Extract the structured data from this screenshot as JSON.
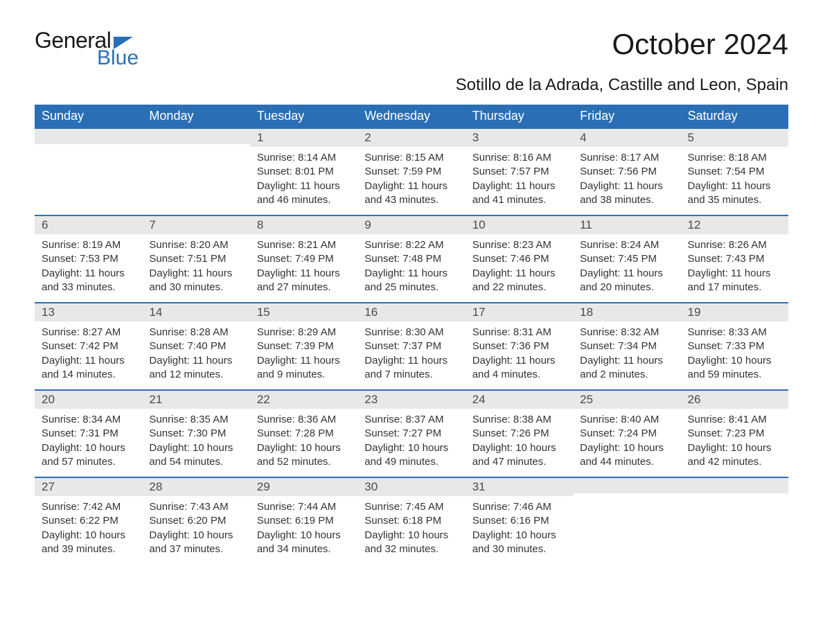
{
  "logo": {
    "top": "General",
    "bottom": "Blue"
  },
  "title": "October 2024",
  "subtitle": "Sotillo de la Adrada, Castille and Leon, Spain",
  "colors": {
    "header_bg": "#2a6fb5",
    "header_text": "#ffffff",
    "daynum_bg": "#e8e8e8",
    "daynum_border": "#2a6fb5",
    "body_text": "#333333",
    "page_bg": "#ffffff"
  },
  "typography": {
    "title_fontsize": 42,
    "subtitle_fontsize": 24,
    "header_fontsize": 18,
    "daynum_fontsize": 17,
    "body_fontsize": 15
  },
  "weekdays": [
    "Sunday",
    "Monday",
    "Tuesday",
    "Wednesday",
    "Thursday",
    "Friday",
    "Saturday"
  ],
  "rows": [
    [
      {
        "blank": true
      },
      {
        "blank": true
      },
      {
        "n": "1",
        "sunrise": "8:14 AM",
        "sunset": "8:01 PM",
        "daylight": "11 hours and 46 minutes."
      },
      {
        "n": "2",
        "sunrise": "8:15 AM",
        "sunset": "7:59 PM",
        "daylight": "11 hours and 43 minutes."
      },
      {
        "n": "3",
        "sunrise": "8:16 AM",
        "sunset": "7:57 PM",
        "daylight": "11 hours and 41 minutes."
      },
      {
        "n": "4",
        "sunrise": "8:17 AM",
        "sunset": "7:56 PM",
        "daylight": "11 hours and 38 minutes."
      },
      {
        "n": "5",
        "sunrise": "8:18 AM",
        "sunset": "7:54 PM",
        "daylight": "11 hours and 35 minutes."
      }
    ],
    [
      {
        "n": "6",
        "sunrise": "8:19 AM",
        "sunset": "7:53 PM",
        "daylight": "11 hours and 33 minutes."
      },
      {
        "n": "7",
        "sunrise": "8:20 AM",
        "sunset": "7:51 PM",
        "daylight": "11 hours and 30 minutes."
      },
      {
        "n": "8",
        "sunrise": "8:21 AM",
        "sunset": "7:49 PM",
        "daylight": "11 hours and 27 minutes."
      },
      {
        "n": "9",
        "sunrise": "8:22 AM",
        "sunset": "7:48 PM",
        "daylight": "11 hours and 25 minutes."
      },
      {
        "n": "10",
        "sunrise": "8:23 AM",
        "sunset": "7:46 PM",
        "daylight": "11 hours and 22 minutes."
      },
      {
        "n": "11",
        "sunrise": "8:24 AM",
        "sunset": "7:45 PM",
        "daylight": "11 hours and 20 minutes."
      },
      {
        "n": "12",
        "sunrise": "8:26 AM",
        "sunset": "7:43 PM",
        "daylight": "11 hours and 17 minutes."
      }
    ],
    [
      {
        "n": "13",
        "sunrise": "8:27 AM",
        "sunset": "7:42 PM",
        "daylight": "11 hours and 14 minutes."
      },
      {
        "n": "14",
        "sunrise": "8:28 AM",
        "sunset": "7:40 PM",
        "daylight": "11 hours and 12 minutes."
      },
      {
        "n": "15",
        "sunrise": "8:29 AM",
        "sunset": "7:39 PM",
        "daylight": "11 hours and 9 minutes."
      },
      {
        "n": "16",
        "sunrise": "8:30 AM",
        "sunset": "7:37 PM",
        "daylight": "11 hours and 7 minutes."
      },
      {
        "n": "17",
        "sunrise": "8:31 AM",
        "sunset": "7:36 PM",
        "daylight": "11 hours and 4 minutes."
      },
      {
        "n": "18",
        "sunrise": "8:32 AM",
        "sunset": "7:34 PM",
        "daylight": "11 hours and 2 minutes."
      },
      {
        "n": "19",
        "sunrise": "8:33 AM",
        "sunset": "7:33 PM",
        "daylight": "10 hours and 59 minutes."
      }
    ],
    [
      {
        "n": "20",
        "sunrise": "8:34 AM",
        "sunset": "7:31 PM",
        "daylight": "10 hours and 57 minutes."
      },
      {
        "n": "21",
        "sunrise": "8:35 AM",
        "sunset": "7:30 PM",
        "daylight": "10 hours and 54 minutes."
      },
      {
        "n": "22",
        "sunrise": "8:36 AM",
        "sunset": "7:28 PM",
        "daylight": "10 hours and 52 minutes."
      },
      {
        "n": "23",
        "sunrise": "8:37 AM",
        "sunset": "7:27 PM",
        "daylight": "10 hours and 49 minutes."
      },
      {
        "n": "24",
        "sunrise": "8:38 AM",
        "sunset": "7:26 PM",
        "daylight": "10 hours and 47 minutes."
      },
      {
        "n": "25",
        "sunrise": "8:40 AM",
        "sunset": "7:24 PM",
        "daylight": "10 hours and 44 minutes."
      },
      {
        "n": "26",
        "sunrise": "8:41 AM",
        "sunset": "7:23 PM",
        "daylight": "10 hours and 42 minutes."
      }
    ],
    [
      {
        "n": "27",
        "sunrise": "7:42 AM",
        "sunset": "6:22 PM",
        "daylight": "10 hours and 39 minutes."
      },
      {
        "n": "28",
        "sunrise": "7:43 AM",
        "sunset": "6:20 PM",
        "daylight": "10 hours and 37 minutes."
      },
      {
        "n": "29",
        "sunrise": "7:44 AM",
        "sunset": "6:19 PM",
        "daylight": "10 hours and 34 minutes."
      },
      {
        "n": "30",
        "sunrise": "7:45 AM",
        "sunset": "6:18 PM",
        "daylight": "10 hours and 32 minutes."
      },
      {
        "n": "31",
        "sunrise": "7:46 AM",
        "sunset": "6:16 PM",
        "daylight": "10 hours and 30 minutes."
      },
      {
        "blank": true
      },
      {
        "blank": true
      }
    ]
  ],
  "labels": {
    "sunrise": "Sunrise: ",
    "sunset": "Sunset: ",
    "daylight": "Daylight: "
  }
}
